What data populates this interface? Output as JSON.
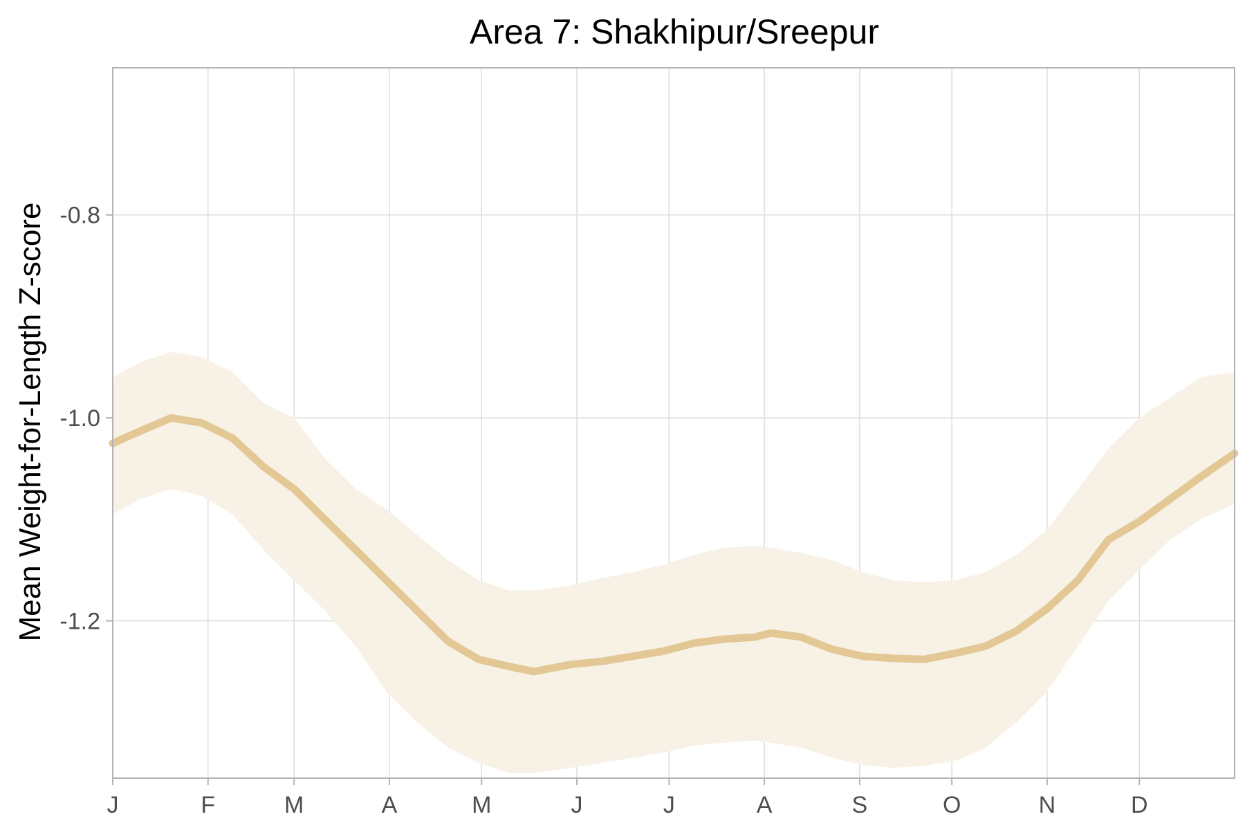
{
  "chart_data": {
    "type": "line",
    "title": "Area 7: Shakhipur/Sreepur",
    "xlabel": "",
    "ylabel": "Mean Weight-for-Length Z-score",
    "x_ticks": [
      "J",
      "F",
      "M",
      "A",
      "M",
      "J",
      "J",
      "A",
      "S",
      "O",
      "N",
      "D"
    ],
    "x_tick_days": [
      1,
      32,
      60,
      91,
      121,
      152,
      182,
      213,
      244,
      274,
      305,
      335
    ],
    "xlim": [
      1,
      366
    ],
    "y_ticks": [
      -0.8,
      -1.0,
      -1.2
    ],
    "ylim": [
      -1.355,
      -0.655
    ],
    "grid": true,
    "colors": {
      "line": "#e3c896",
      "band": "#f8f2e6",
      "grid": "#dddddd",
      "frame": "#b3b3b3"
    },
    "series": [
      {
        "x": [
          1,
          10,
          20,
          30,
          40,
          50,
          60,
          70,
          80,
          90,
          100,
          110,
          120,
          130,
          138,
          150,
          160,
          170,
          180,
          190,
          200,
          210,
          215,
          225,
          235,
          245,
          255,
          265,
          275,
          285,
          295,
          305,
          315,
          325,
          335,
          345,
          355,
          366
        ],
        "y": [
          -1.025,
          -1.013,
          -1.0,
          -1.005,
          -1.02,
          -1.048,
          -1.07,
          -1.1,
          -1.13,
          -1.16,
          -1.19,
          -1.22,
          -1.238,
          -1.245,
          -1.25,
          -1.243,
          -1.24,
          -1.235,
          -1.23,
          -1.222,
          -1.218,
          -1.216,
          -1.212,
          -1.216,
          -1.228,
          -1.235,
          -1.237,
          -1.238,
          -1.232,
          -1.225,
          -1.21,
          -1.188,
          -1.16,
          -1.12,
          -1.102,
          -1.08,
          -1.058,
          -1.035
        ],
        "lower": [
          -1.095,
          -1.08,
          -1.07,
          -1.077,
          -1.095,
          -1.13,
          -1.16,
          -1.19,
          -1.225,
          -1.27,
          -1.3,
          -1.325,
          -1.34,
          -1.35,
          -1.35,
          -1.345,
          -1.34,
          -1.335,
          -1.33,
          -1.323,
          -1.32,
          -1.318,
          -1.32,
          -1.325,
          -1.335,
          -1.342,
          -1.345,
          -1.343,
          -1.338,
          -1.325,
          -1.3,
          -1.27,
          -1.225,
          -1.18,
          -1.15,
          -1.12,
          -1.1,
          -1.085
        ],
        "upper": [
          -0.96,
          -0.945,
          -0.935,
          -0.94,
          -0.955,
          -0.985,
          -1.0,
          -1.04,
          -1.07,
          -1.09,
          -1.115,
          -1.14,
          -1.16,
          -1.17,
          -1.17,
          -1.165,
          -1.158,
          -1.152,
          -1.145,
          -1.135,
          -1.128,
          -1.126,
          -1.128,
          -1.133,
          -1.14,
          -1.152,
          -1.16,
          -1.162,
          -1.16,
          -1.152,
          -1.135,
          -1.11,
          -1.07,
          -1.03,
          -1.0,
          -0.98,
          -0.96,
          -0.955
        ]
      }
    ]
  }
}
